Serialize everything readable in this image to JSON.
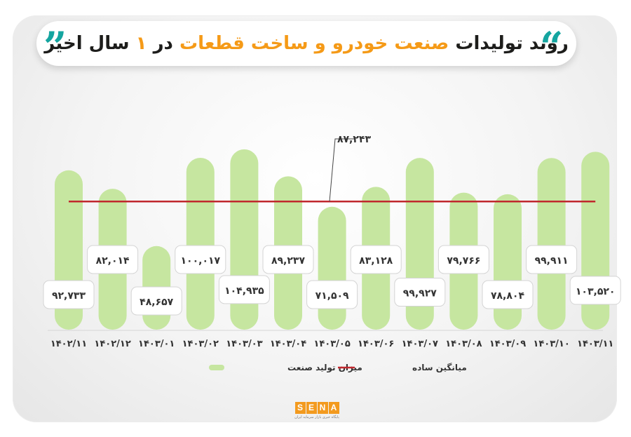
{
  "title": {
    "part1": "روند تولیدات",
    "part2": "صنعت خودرو و ساخت قطعات",
    "part3": "در",
    "part4": "۱",
    "part5": "سال اخیر",
    "quote_open": "”",
    "quote_close": "“"
  },
  "colors": {
    "bar": "#c6e6a0",
    "avg_line": "#c0272d",
    "accent": "#f59a17",
    "quote": "#15a5a0"
  },
  "chart_data": {
    "type": "bar",
    "categories": [
      "۱۴۰۲/۱۱",
      "۱۴۰۲/۱۲",
      "۱۴۰۳/۰۱",
      "۱۴۰۳/۰۲",
      "۱۴۰۳/۰۳",
      "۱۴۰۳/۰۴",
      "۱۴۰۳/۰۵",
      "۱۴۰۳/۰۶",
      "۱۴۰۳/۰۷",
      "۱۴۰۳/۰۸",
      "۱۴۰۳/۰۹",
      "۱۴۰۳/۱۰",
      "۱۴۰۳/۱۱"
    ],
    "values": [
      92733,
      82014,
      48657,
      100017,
      104935,
      89237,
      71509,
      83128,
      99927,
      79766,
      78804,
      99911,
      103520
    ],
    "value_labels": [
      "۹۲,۷۳۳",
      "۸۲,۰۱۴",
      "۴۸,۶۵۷",
      "۱۰۰,۰۱۷",
      "۱۰۴,۹۳۵",
      "۸۹,۲۳۷",
      "۷۱,۵۰۹",
      "۸۳,۱۲۸",
      "۹۹,۹۲۷",
      "۷۹,۷۶۶",
      "۷۸,۸۰۴",
      "۹۹,۹۱۱",
      "۱۰۳,۵۲۰"
    ],
    "average": 87243,
    "average_label": "۸۷,۲۴۳",
    "series": [
      {
        "name": "میزان تولید صنعت"
      },
      {
        "name": "میانگین ساده"
      }
    ],
    "legend_position": "bottom"
  },
  "logo": {
    "letters": [
      "S",
      "E",
      "N",
      "A"
    ],
    "tagline": "پایگاه خبری بازار سرمایه ایران"
  }
}
